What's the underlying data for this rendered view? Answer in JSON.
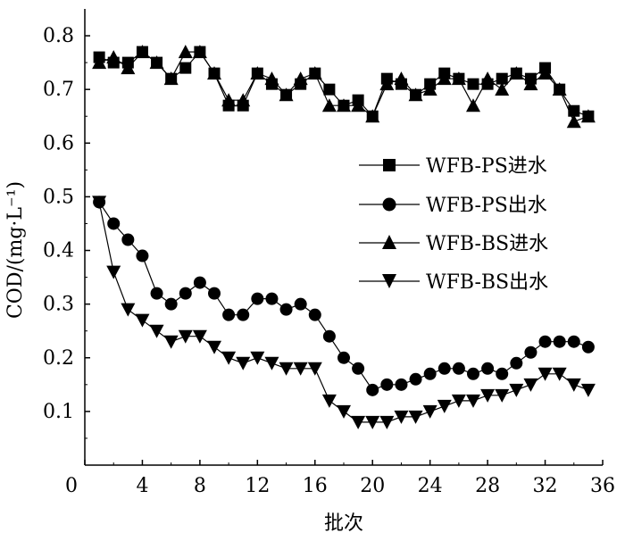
{
  "chart_data": {
    "type": "line",
    "title": "",
    "xlabel": "批次",
    "ylabel": "COD/(mg·L⁻¹)",
    "xlim": [
      0,
      36
    ],
    "ylim": [
      0,
      0.85
    ],
    "xticks": [
      "0",
      "4",
      "8",
      "12",
      "16",
      "20",
      "24",
      "28",
      "32",
      "36"
    ],
    "yticks": [
      "0.1",
      "0.2",
      "0.3",
      "0.4",
      "0.5",
      "0.6",
      "0.7",
      "0.8"
    ],
    "grid": false,
    "legend_position": "right-middle",
    "series": [
      {
        "name": "WFB-PS进水",
        "marker": "square",
        "x": [
          1,
          2,
          3,
          4,
          5,
          6,
          7,
          8,
          9,
          10,
          11,
          12,
          13,
          14,
          15,
          16,
          17,
          18,
          19,
          20,
          21,
          22,
          23,
          24,
          25,
          26,
          27,
          28,
          29,
          30,
          31,
          32,
          33,
          34,
          35
        ],
        "values": [
          0.76,
          0.75,
          0.75,
          0.77,
          0.75,
          0.72,
          0.74,
          0.77,
          0.73,
          0.67,
          0.67,
          0.73,
          0.71,
          0.69,
          0.71,
          0.73,
          0.7,
          0.67,
          0.68,
          0.65,
          0.72,
          0.71,
          0.69,
          0.71,
          0.73,
          0.72,
          0.71,
          0.71,
          0.72,
          0.73,
          0.72,
          0.74,
          0.7,
          0.66,
          0.65
        ]
      },
      {
        "name": "WFB-PS出水",
        "marker": "circle",
        "x": [
          1,
          2,
          3,
          4,
          5,
          6,
          7,
          8,
          9,
          10,
          11,
          12,
          13,
          14,
          15,
          16,
          17,
          18,
          19,
          20,
          21,
          22,
          23,
          24,
          25,
          26,
          27,
          28,
          29,
          30,
          31,
          32,
          33,
          34,
          35
        ],
        "values": [
          0.49,
          0.45,
          0.42,
          0.39,
          0.32,
          0.3,
          0.32,
          0.34,
          0.32,
          0.28,
          0.28,
          0.31,
          0.31,
          0.29,
          0.3,
          0.28,
          0.24,
          0.2,
          0.18,
          0.14,
          0.15,
          0.15,
          0.16,
          0.17,
          0.18,
          0.18,
          0.17,
          0.18,
          0.17,
          0.19,
          0.21,
          0.23,
          0.23,
          0.23,
          0.22
        ]
      },
      {
        "name": "WFB-BS进水",
        "marker": "triangle-up",
        "x": [
          1,
          2,
          3,
          4,
          5,
          6,
          7,
          8,
          9,
          10,
          11,
          12,
          13,
          14,
          15,
          16,
          17,
          18,
          19,
          20,
          21,
          22,
          23,
          24,
          25,
          26,
          27,
          28,
          29,
          30,
          31,
          32,
          33,
          34,
          35
        ],
        "values": [
          0.75,
          0.76,
          0.74,
          0.77,
          0.75,
          0.72,
          0.77,
          0.77,
          0.73,
          0.68,
          0.68,
          0.73,
          0.72,
          0.69,
          0.72,
          0.73,
          0.67,
          0.67,
          0.67,
          0.65,
          0.71,
          0.72,
          0.69,
          0.7,
          0.72,
          0.72,
          0.67,
          0.72,
          0.7,
          0.73,
          0.71,
          0.73,
          0.7,
          0.64,
          0.65
        ]
      },
      {
        "name": "WFB-BS出水",
        "marker": "triangle-down",
        "x": [
          1,
          2,
          3,
          4,
          5,
          6,
          7,
          8,
          9,
          10,
          11,
          12,
          13,
          14,
          15,
          16,
          17,
          18,
          19,
          20,
          21,
          22,
          23,
          24,
          25,
          26,
          27,
          28,
          29,
          30,
          31,
          32,
          33,
          34,
          35
        ],
        "values": [
          0.49,
          0.36,
          0.29,
          0.27,
          0.25,
          0.23,
          0.24,
          0.24,
          0.22,
          0.2,
          0.19,
          0.2,
          0.19,
          0.18,
          0.18,
          0.18,
          0.12,
          0.1,
          0.08,
          0.08,
          0.08,
          0.09,
          0.09,
          0.1,
          0.11,
          0.12,
          0.12,
          0.13,
          0.13,
          0.14,
          0.15,
          0.17,
          0.17,
          0.15,
          0.14
        ]
      }
    ]
  }
}
